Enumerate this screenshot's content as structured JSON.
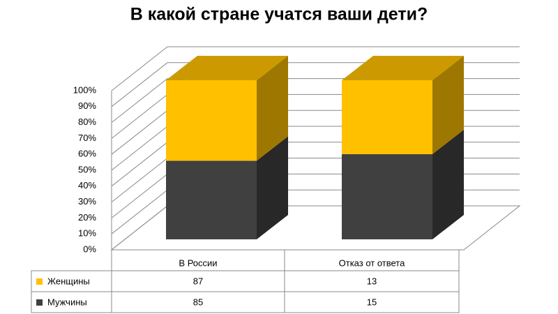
{
  "chart_data": {
    "type": "stacked_percent_bar_3d",
    "title": "В какой стране учатся ваши дети?",
    "categories": [
      "В России",
      "Отказ от ответа"
    ],
    "series": [
      {
        "name": "Женщины",
        "color": "#FFC000",
        "values": [
          87,
          13
        ]
      },
      {
        "name": "Мужчины",
        "color": "#404040",
        "values": [
          85,
          15
        ]
      }
    ],
    "ylim": [
      0,
      100
    ],
    "yticks": [
      {
        "value": 0,
        "label": "0%"
      },
      {
        "value": 10,
        "label": "10%"
      },
      {
        "value": 20,
        "label": "20%"
      },
      {
        "value": 30,
        "label": "30%"
      },
      {
        "value": 40,
        "label": "40%"
      },
      {
        "value": 50,
        "label": "50%"
      },
      {
        "value": 60,
        "label": "60%"
      },
      {
        "value": 70,
        "label": "70%"
      },
      {
        "value": 80,
        "label": "80%"
      },
      {
        "value": 90,
        "label": "90%"
      },
      {
        "value": 100,
        "label": "100%"
      }
    ],
    "grid": true
  }
}
